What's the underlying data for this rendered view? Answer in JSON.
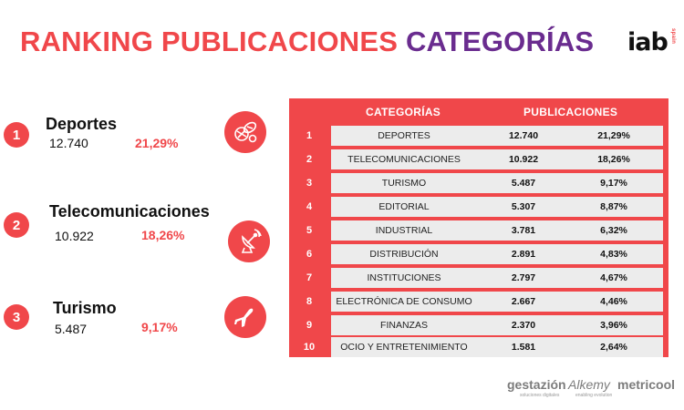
{
  "title": {
    "part1": "RANKING PUBLICACIONES",
    "part2": "CATEGORÍAS"
  },
  "brand": {
    "logo": "iab",
    "sub": "spain"
  },
  "ranking": [
    {
      "rank": "1",
      "name": "Deportes",
      "count": "12.740",
      "pct": "21,29%",
      "icon": "sports-balls-icon"
    },
    {
      "rank": "2",
      "name": "Telecomunicaciones",
      "count": "10.922",
      "pct": "18,26%",
      "icon": "satellite-dish-icon"
    },
    {
      "rank": "3",
      "name": "Turismo",
      "count": "5.487",
      "pct": "9,17%",
      "icon": "airplane-icon"
    }
  ],
  "table": {
    "headers": {
      "category": "CATEGORÍAS",
      "publications": "PUBLICACIONES"
    },
    "rows": [
      {
        "n": "1",
        "category": "DEPORTES",
        "publications": "12.740",
        "pct": "21,29%"
      },
      {
        "n": "2",
        "category": "TELECOMUNICACIONES",
        "publications": "10.922",
        "pct": "18,26%"
      },
      {
        "n": "3",
        "category": "TURISMO",
        "publications": "5.487",
        "pct": "9,17%"
      },
      {
        "n": "4",
        "category": "EDITORIAL",
        "publications": "5.307",
        "pct": "8,87%"
      },
      {
        "n": "5",
        "category": "INDUSTRIAL",
        "publications": "3.781",
        "pct": "6,32%"
      },
      {
        "n": "6",
        "category": "DISTRIBUCIÓN",
        "publications": "2.891",
        "pct": "4,83%"
      },
      {
        "n": "7",
        "category": "INSTITUCIONES",
        "publications": "2.797",
        "pct": "4,67%"
      },
      {
        "n": "8",
        "category": "ELECTRÓNICA DE CONSUMO",
        "publications": "2.667",
        "pct": "4,46%"
      },
      {
        "n": "9",
        "category": "FINANZAS",
        "publications": "2.370",
        "pct": "3,96%"
      },
      {
        "n": "10",
        "category": "OCIO Y ENTRETENIMIENTO",
        "publications": "1.581",
        "pct": "2,64%"
      }
    ]
  },
  "footer": {
    "logos": [
      {
        "name": "gestazión",
        "sub": "soluciones digitales"
      },
      {
        "name": "Alkemy",
        "sub": "enabling evolution"
      },
      {
        "name": "metricool",
        "sub": ""
      }
    ]
  },
  "colors": {
    "accent": "#f0474a",
    "purple": "#6a2c8f",
    "cell_bg": "#ececec"
  }
}
